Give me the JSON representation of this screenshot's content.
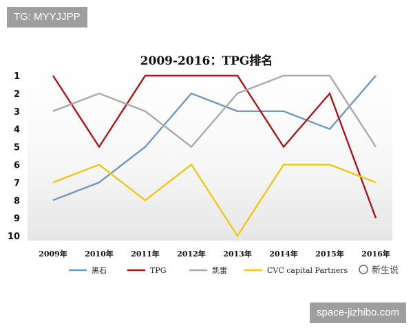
{
  "watermarks": {
    "top_left": "TG: MYYJJPP",
    "bottom_right": "space-jizhibo.com",
    "chart_corner": "新生说"
  },
  "chart_data": {
    "type": "line",
    "title": "2009-2016：TPG排名",
    "categories": [
      "2009年",
      "2010年",
      "2011年",
      "2012年",
      "2013年",
      "2014年",
      "2015年",
      "2016年"
    ],
    "y_ticks": [
      1,
      2,
      3,
      4,
      5,
      6,
      7,
      8,
      9,
      10
    ],
    "ylim": [
      1,
      10
    ],
    "y_inverted": true,
    "grid": false,
    "legend_position": "bottom",
    "series": [
      {
        "name": "黑石",
        "color": "#6f98bf",
        "values": [
          8,
          7,
          5,
          2,
          3,
          3,
          4,
          1
        ]
      },
      {
        "name": "TPG",
        "color": "#a3161c",
        "values": [
          1,
          5,
          1,
          1,
          1,
          5,
          2,
          9
        ]
      },
      {
        "name": "凯雷",
        "color": "#a9a9a9",
        "values": [
          3,
          2,
          3,
          5,
          2,
          1,
          1,
          5
        ]
      },
      {
        "name": "CVC capital Partners",
        "color": "#f0c419",
        "values": [
          7,
          6,
          8,
          6,
          10,
          6,
          6,
          7
        ]
      }
    ]
  }
}
